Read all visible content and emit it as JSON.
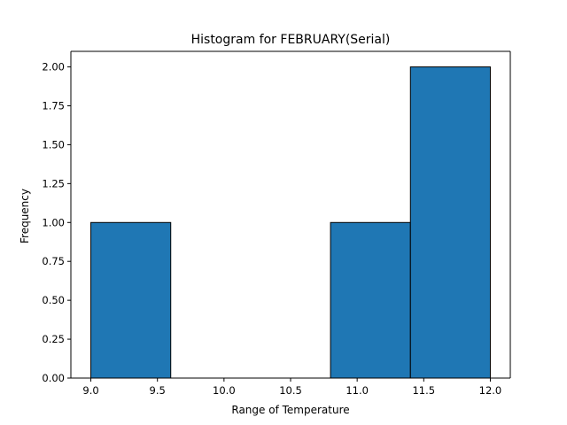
{
  "chart_data": {
    "type": "bar",
    "title": "Histogram for FEBRUARY(Serial)",
    "xlabel": "Range of Temperature",
    "ylabel": "Frequency",
    "bins": [
      {
        "x0": 9.0,
        "x1": 9.6,
        "value": 1
      },
      {
        "x0": 9.6,
        "x1": 10.2,
        "value": 0
      },
      {
        "x0": 10.2,
        "x1": 10.8,
        "value": 0
      },
      {
        "x0": 10.8,
        "x1": 11.4,
        "value": 1
      },
      {
        "x0": 11.4,
        "x1": 12.0,
        "value": 2
      }
    ],
    "xlim": [
      8.85,
      12.15
    ],
    "ylim": [
      0,
      2.1
    ],
    "xticks": [
      9.0,
      9.5,
      10.0,
      10.5,
      11.0,
      11.5,
      12.0
    ],
    "xtick_labels": [
      "9.0",
      "9.5",
      "10.0",
      "10.5",
      "11.0",
      "11.5",
      "12.0"
    ],
    "yticks": [
      0,
      0.25,
      0.5,
      0.75,
      1.0,
      1.25,
      1.5,
      1.75,
      2.0
    ],
    "ytick_labels": [
      "0.00",
      "0.25",
      "0.50",
      "0.75",
      "1.00",
      "1.25",
      "1.50",
      "1.75",
      "2.00"
    ],
    "grid": false,
    "bar_color": "#1f77b4",
    "edge_color": "#000000"
  }
}
